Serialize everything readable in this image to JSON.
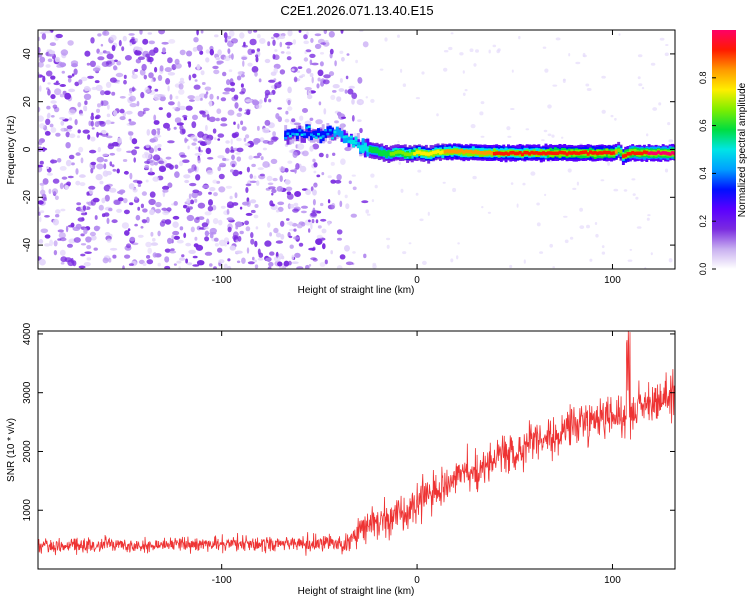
{
  "title": "C2E1.2026.071.13.40.E15",
  "colors": {
    "snr_line": "#ee3333",
    "spectrogram_noise": "#7a2be0",
    "colormap": [
      "#ffffff",
      "#c9b0f0",
      "#7a2be0",
      "#5a00ff",
      "#0010ff",
      "#00a0ff",
      "#00e5e5",
      "#00dd40",
      "#7fee00",
      "#ffee00",
      "#ff9900",
      "#ff1a00",
      "#ff0066"
    ]
  },
  "chart_data": [
    {
      "type": "heatmap",
      "title": "C2E1.2026.071.13.40.E15",
      "xlabel": "Height of straight line (km)",
      "ylabel": "Frequency (Hz)",
      "xlim": [
        -194,
        132
      ],
      "ylim": [
        -50,
        50
      ],
      "xticks": [
        -100,
        0,
        100
      ],
      "yticks": [
        -40,
        -20,
        0,
        20,
        40
      ],
      "grid": false,
      "colorbar": {
        "label": "Normalized spectral amplitude",
        "range": [
          0.0,
          1.0
        ],
        "ticks": [
          0.0,
          0.2,
          0.4,
          0.6,
          0.8
        ]
      },
      "noise_region": {
        "x_range": [
          -194,
          -35
        ],
        "freq_range": [
          -50,
          50
        ],
        "amplitude": 0.2
      },
      "signal_ridge": {
        "x": [
          -68,
          -60,
          -50,
          -42,
          -36,
          -30,
          -25,
          -20,
          -15,
          -10,
          -5,
          0,
          5,
          10,
          20,
          40,
          60,
          80,
          100,
          103,
          105,
          108,
          120,
          132
        ],
        "freq": [
          6,
          7,
          6,
          8,
          4,
          2,
          0,
          -1,
          -2,
          -1,
          -2,
          -1,
          -2,
          -1,
          -1,
          -1.5,
          -1.5,
          -1.5,
          -1.5,
          0,
          -3,
          -1.5,
          -1.5,
          -1.5
        ],
        "amplitude": [
          0.3,
          0.32,
          0.34,
          0.38,
          0.45,
          0.5,
          0.55,
          0.6,
          0.62,
          0.65,
          0.7,
          0.72,
          0.75,
          0.78,
          0.82,
          0.88,
          0.9,
          0.92,
          0.93,
          0.6,
          0.93,
          0.95,
          0.96,
          0.97
        ]
      }
    },
    {
      "type": "line",
      "xlabel": "Height of straight line (km)",
      "ylabel": "SNR (10 * v/v)",
      "xlim": [
        -194,
        132
      ],
      "ylim": [
        0,
        4050
      ],
      "xticks": [
        -100,
        0,
        100
      ],
      "yticks": [
        1000,
        2000,
        3000,
        4000
      ],
      "grid": false,
      "series": [
        {
          "x": [
            -194,
            -180,
            -160,
            -140,
            -120,
            -100,
            -80,
            -60,
            -45,
            -35,
            -30,
            -20,
            -10,
            0,
            10,
            20,
            30,
            40,
            50,
            60,
            70,
            80,
            90,
            100,
            105,
            108,
            110,
            120,
            132
          ],
          "y": [
            400,
            400,
            410,
            410,
            420,
            420,
            430,
            430,
            430,
            450,
            650,
            800,
            950,
            1150,
            1350,
            1550,
            1700,
            1850,
            2000,
            2150,
            2300,
            2450,
            2550,
            2650,
            2600,
            2500,
            2700,
            2800,
            2950
          ],
          "noise_amplitude": [
            110,
            110,
            110,
            110,
            110,
            110,
            115,
            115,
            120,
            140,
            220,
            260,
            280,
            300,
            300,
            300,
            300,
            300,
            300,
            300,
            300,
            300,
            300,
            300,
            300,
            600,
            300,
            300,
            300
          ]
        }
      ]
    }
  ]
}
